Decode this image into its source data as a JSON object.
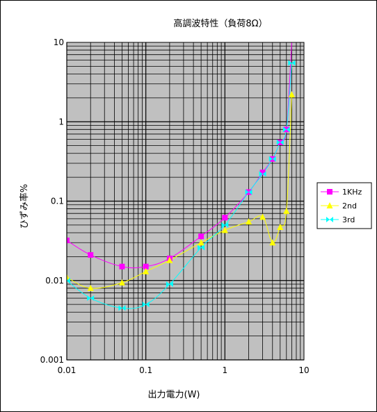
{
  "chart_data": {
    "type": "line",
    "title": "高調波特性（負荷8Ω）",
    "xlabel": "出力電力(W)",
    "ylabel": "ひずみ率%",
    "xscale": "log",
    "yscale": "log",
    "xlim": [
      0.01,
      10
    ],
    "ylim": [
      0.001,
      10
    ],
    "xticks": [
      "0.01",
      "0.1",
      "1",
      "10"
    ],
    "yticks": [
      "0.001",
      "0.01",
      "0.1",
      "1",
      "10"
    ],
    "grid": true,
    "plot_background": "#c0c0c0",
    "legend_position": "right",
    "series": [
      {
        "name": "1KHz",
        "color": "#ff00ff",
        "marker": "square",
        "points": [
          [
            0.01,
            0.032
          ],
          [
            0.02,
            0.021
          ],
          [
            0.05,
            0.015
          ],
          [
            0.1,
            0.015
          ],
          [
            0.2,
            0.019
          ],
          [
            0.5,
            0.036
          ],
          [
            1,
            0.062
          ],
          [
            2,
            0.13
          ],
          [
            3,
            0.23
          ],
          [
            4,
            0.34
          ],
          [
            5,
            0.55
          ],
          [
            6,
            0.8
          ],
          [
            7,
            10
          ]
        ]
      },
      {
        "name": "2nd",
        "color": "#ffff00",
        "marker": "triangle",
        "points": [
          [
            0.01,
            0.011
          ],
          [
            0.02,
            0.008
          ],
          [
            0.05,
            0.0094
          ],
          [
            0.1,
            0.013
          ],
          [
            0.2,
            0.018
          ],
          [
            0.5,
            0.03
          ],
          [
            1,
            0.043
          ],
          [
            2,
            0.055
          ],
          [
            3,
            0.063
          ],
          [
            4,
            0.03
          ],
          [
            5,
            0.047
          ],
          [
            6,
            0.075
          ],
          [
            7,
            2.2
          ]
        ]
      },
      {
        "name": "3rd",
        "color": "#00ffff",
        "marker": "bowtie",
        "points": [
          [
            0.01,
            0.01
          ],
          [
            0.02,
            0.006
          ],
          [
            0.05,
            0.0045
          ],
          [
            0.1,
            0.005
          ],
          [
            0.2,
            0.009
          ],
          [
            0.5,
            0.026
          ],
          [
            1,
            0.05
          ],
          [
            2,
            0.13
          ],
          [
            3,
            0.22
          ],
          [
            4,
            0.34
          ],
          [
            5,
            0.55
          ],
          [
            6,
            0.8
          ],
          [
            7,
            5.5
          ]
        ]
      }
    ]
  }
}
